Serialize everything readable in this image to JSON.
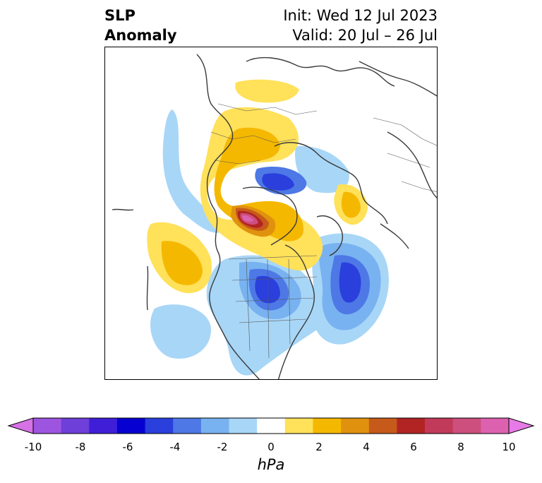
{
  "title": {
    "left_line1": "SLP",
    "left_line2": "Anomaly",
    "right_line1": "Init: Wed 12 Jul 2023",
    "right_line2": "Valid: 20 Jul – 26 Jul"
  },
  "colorbar": {
    "unit": "hPa",
    "ticks": [
      "-10",
      "-8",
      "-6",
      "-4",
      "-2",
      "0",
      "2",
      "4",
      "6",
      "8",
      "10"
    ],
    "colors": [
      "#d671e6",
      "#9d55e0",
      "#6e3fd9",
      "#3f1ed8",
      "#0600d0",
      "#2a3fdc",
      "#4d78e6",
      "#78b2f0",
      "#a8d6f7",
      "#ffffff",
      "#ffe15a",
      "#f5b800",
      "#e0920f",
      "#c65a1a",
      "#b22424",
      "#c23a5a",
      "#cc4f7e",
      "#dc62b0",
      "#e67ae6"
    ]
  }
}
